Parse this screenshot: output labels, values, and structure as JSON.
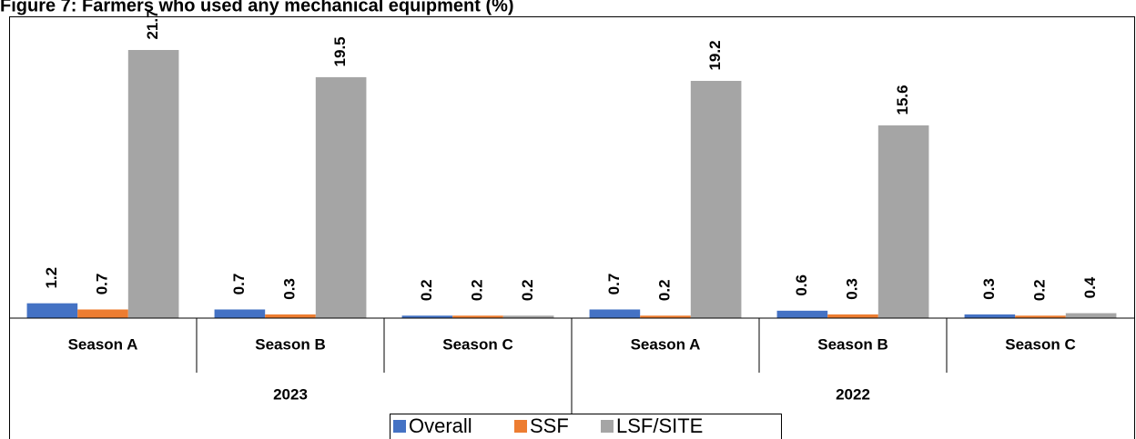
{
  "chart_data": {
    "type": "bar",
    "title": "Figure 7: Farmers who used any mechanical equipment (%)",
    "groups": [
      {
        "name": "2023",
        "categories": [
          "Season A",
          "Season B",
          "Season C"
        ]
      },
      {
        "name": "2022",
        "categories": [
          "Season A",
          "Season B",
          "Season C"
        ]
      }
    ],
    "series": [
      {
        "name": "Overall",
        "color": "#4472c4",
        "values": [
          1.2,
          0.7,
          0.2,
          0.7,
          0.6,
          0.3
        ]
      },
      {
        "name": "SSF",
        "color": "#ed7d31",
        "values": [
          0.7,
          0.3,
          0.2,
          0.2,
          0.3,
          0.2
        ]
      },
      {
        "name": "LSF/SITE",
        "color": "#a5a5a5",
        "values": [
          21.7,
          19.5,
          0.2,
          19.2,
          15.6,
          0.4
        ]
      }
    ]
  }
}
